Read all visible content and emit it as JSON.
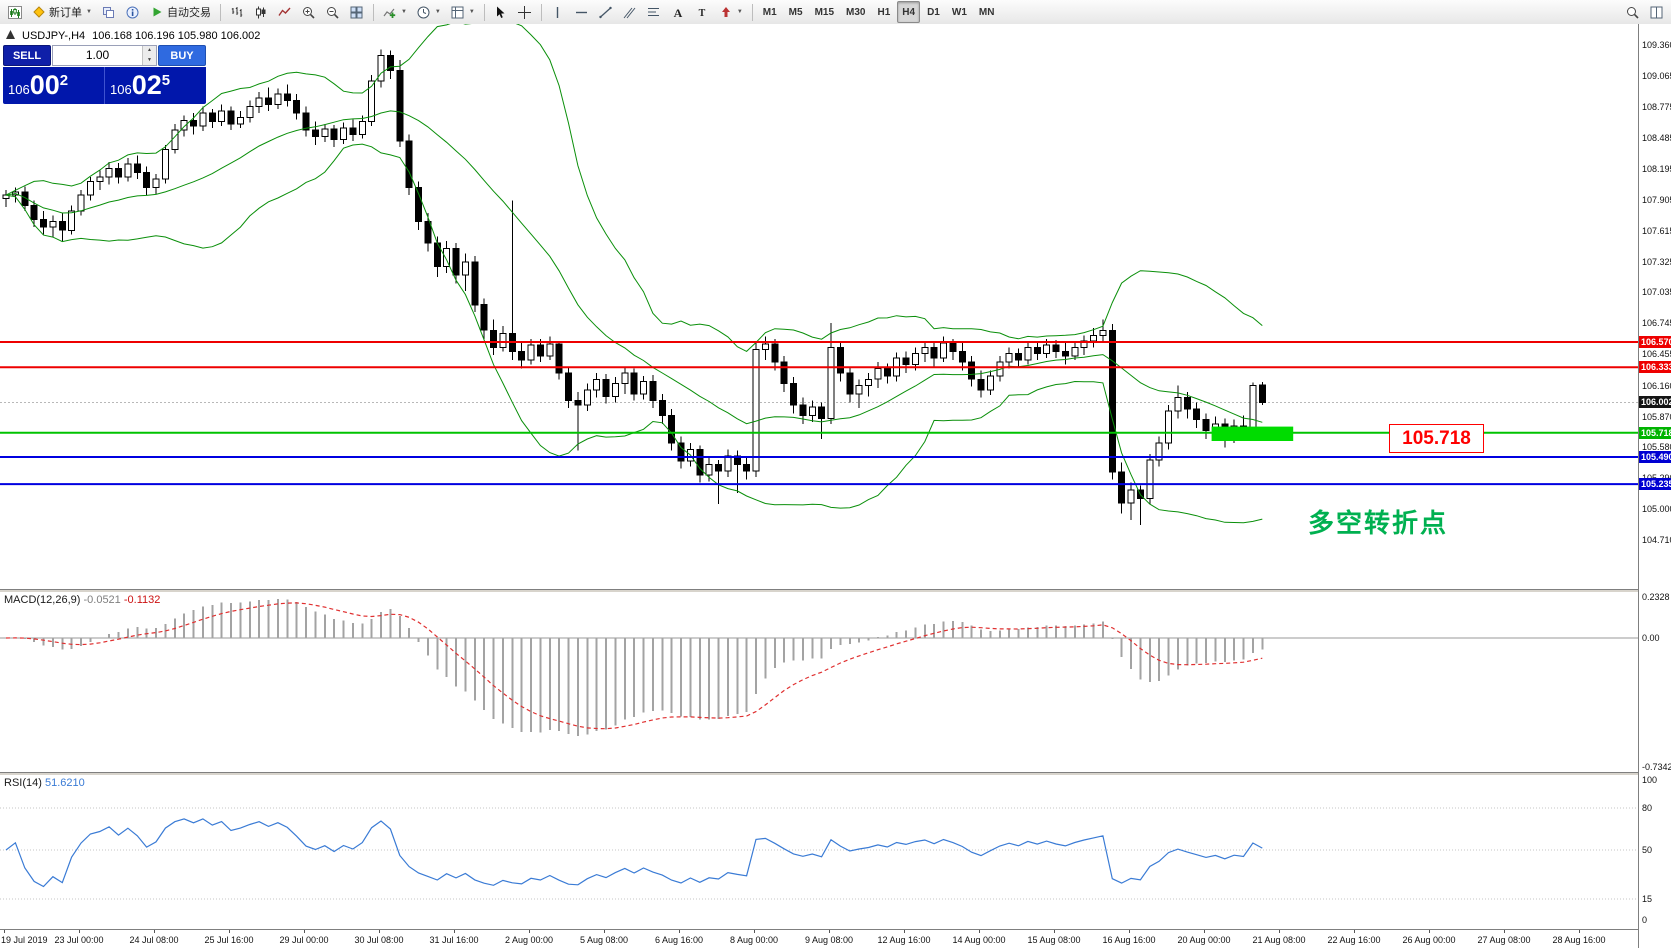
{
  "toolbar": {
    "groups": [
      {
        "items": [
          {
            "name": "new-chart-button",
            "icon": "chart-icon"
          },
          {
            "name": "new-order-button",
            "icon": "diamond-icon",
            "label": "新订单",
            "caret": true
          },
          {
            "name": "profiles-button",
            "icon": "layers-icon"
          },
          {
            "name": "data-window-button",
            "icon": "info-icon"
          },
          {
            "name": "autotrading-button",
            "icon": "play-icon",
            "label": "自动交易"
          }
        ]
      },
      {
        "items": [
          {
            "name": "bar-chart-button",
            "icon": "bars-icon"
          },
          {
            "name": "candlestick-button",
            "icon": "candles-icon"
          },
          {
            "name": "line-chart-button",
            "icon": "line-icon"
          },
          {
            "name": "zoom-in-button",
            "icon": "zoom-in-icon"
          },
          {
            "name": "zoom-out-button",
            "icon": "zoom-out-icon"
          },
          {
            "name": "tile-windows-button",
            "icon": "tile-icon"
          }
        ]
      },
      {
        "items": [
          {
            "name": "indicators-button",
            "icon": "indicator-icon",
            "caret": true
          },
          {
            "name": "periods-button",
            "icon": "clock-icon",
            "caret": true
          },
          {
            "name": "templates-button",
            "icon": "template-icon",
            "caret": true
          }
        ]
      },
      {
        "items": [
          {
            "name": "cursor-button",
            "icon": "cursor-icon"
          },
          {
            "name": "crosshair-button",
            "icon": "crosshair-icon"
          }
        ]
      },
      {
        "items": [
          {
            "name": "vertical-line-button",
            "icon": "vline-icon"
          },
          {
            "name": "horizontal-line-button",
            "icon": "hline-icon"
          },
          {
            "name": "trendline-button",
            "icon": "trendline-icon"
          },
          {
            "name": "channel-button",
            "icon": "channel-icon"
          },
          {
            "name": "fibonacci-button",
            "icon": "fibo-icon"
          },
          {
            "name": "text-button",
            "icon": "text-icon"
          },
          {
            "name": "label-button",
            "icon": "label-icon"
          },
          {
            "name": "arrows-button",
            "icon": "arrow-icon",
            "caret": true
          }
        ]
      },
      {
        "items": [
          {
            "name": "timeframe-m1",
            "label": "M1",
            "tf": true
          },
          {
            "name": "timeframe-m5",
            "label": "M5",
            "tf": true
          },
          {
            "name": "timeframe-m15",
            "label": "M15",
            "tf": true
          },
          {
            "name": "timeframe-m30",
            "label": "M30",
            "tf": true
          },
          {
            "name": "timeframe-h1",
            "label": "H1",
            "tf": true
          },
          {
            "name": "timeframe-h4",
            "label": "H4",
            "tf": true,
            "active": true
          },
          {
            "name": "timeframe-d1",
            "label": "D1",
            "tf": true
          },
          {
            "name": "timeframe-w1",
            "label": "W1",
            "tf": true
          },
          {
            "name": "timeframe-mn",
            "label": "MN",
            "tf": true
          }
        ]
      },
      {
        "align": "right",
        "items": [
          {
            "name": "search-button",
            "icon": "search-icon"
          },
          {
            "name": "arrange-button",
            "icon": "layout-icon"
          }
        ]
      }
    ]
  },
  "symbol_bar": {
    "title": "USDJPY-,H4",
    "ohlc": "106.168 106.196 105.980 106.002"
  },
  "trade_widget": {
    "sell_label": "SELL",
    "buy_label": "BUY",
    "volume": "1.00",
    "bid": {
      "prefix": "106",
      "big": "00",
      "sup": "2"
    },
    "ask": {
      "prefix": "106",
      "big": "02",
      "sup": "5"
    }
  },
  "chart_data": {
    "type": "candlestick",
    "symbol": "USDJPY-",
    "timeframe": "H4",
    "bid_price": 106.002,
    "candles": [
      [
        107.92,
        108.0,
        107.84,
        107.95
      ],
      [
        107.95,
        108.02,
        107.88,
        107.98
      ],
      [
        107.98,
        108.03,
        107.8,
        107.85
      ],
      [
        107.85,
        107.9,
        107.65,
        107.72
      ],
      [
        107.72,
        107.8,
        107.58,
        107.65
      ],
      [
        107.65,
        107.76,
        107.55,
        107.7
      ],
      [
        107.7,
        107.78,
        107.52,
        107.62
      ],
      [
        107.62,
        107.85,
        107.58,
        107.8
      ],
      [
        107.8,
        108.0,
        107.76,
        107.95
      ],
      [
        107.95,
        108.12,
        107.9,
        108.08
      ],
      [
        108.08,
        108.18,
        108.0,
        108.12
      ],
      [
        108.12,
        108.26,
        108.05,
        108.2
      ],
      [
        108.2,
        108.25,
        108.06,
        108.12
      ],
      [
        108.12,
        108.3,
        108.08,
        108.24
      ],
      [
        108.24,
        108.32,
        108.1,
        108.16
      ],
      [
        108.16,
        108.22,
        107.95,
        108.02
      ],
      [
        108.02,
        108.15,
        107.96,
        108.1
      ],
      [
        108.1,
        108.42,
        108.06,
        108.38
      ],
      [
        108.38,
        108.62,
        108.34,
        108.56
      ],
      [
        108.56,
        108.7,
        108.5,
        108.65
      ],
      [
        108.65,
        108.72,
        108.52,
        108.6
      ],
      [
        108.6,
        108.78,
        108.55,
        108.72
      ],
      [
        108.72,
        108.76,
        108.58,
        108.64
      ],
      [
        108.64,
        108.8,
        108.6,
        108.74
      ],
      [
        108.74,
        108.78,
        108.56,
        108.62
      ],
      [
        108.62,
        108.74,
        108.58,
        108.68
      ],
      [
        108.68,
        108.84,
        108.63,
        108.78
      ],
      [
        108.78,
        108.92,
        108.72,
        108.86
      ],
      [
        108.86,
        108.96,
        108.74,
        108.8
      ],
      [
        108.8,
        108.95,
        108.76,
        108.9
      ],
      [
        108.9,
        108.99,
        108.78,
        108.84
      ],
      [
        108.84,
        108.9,
        108.66,
        108.72
      ],
      [
        108.72,
        108.78,
        108.5,
        108.56
      ],
      [
        108.56,
        108.64,
        108.42,
        108.5
      ],
      [
        108.5,
        108.62,
        108.45,
        108.57
      ],
      [
        108.57,
        108.61,
        108.4,
        108.47
      ],
      [
        108.47,
        108.63,
        108.43,
        108.58
      ],
      [
        108.58,
        108.66,
        108.46,
        108.52
      ],
      [
        108.52,
        108.7,
        108.48,
        108.64
      ],
      [
        108.64,
        109.08,
        108.6,
        109.02
      ],
      [
        109.02,
        109.32,
        108.96,
        109.26
      ],
      [
        109.26,
        109.31,
        109.04,
        109.12
      ],
      [
        109.12,
        109.22,
        108.4,
        108.46
      ],
      [
        108.46,
        108.52,
        107.95,
        108.02
      ],
      [
        108.02,
        108.08,
        107.62,
        107.7
      ],
      [
        107.7,
        107.78,
        107.42,
        107.5
      ],
      [
        107.5,
        107.56,
        107.18,
        107.28
      ],
      [
        107.28,
        107.52,
        107.22,
        107.45
      ],
      [
        107.45,
        107.5,
        107.12,
        107.2
      ],
      [
        107.2,
        107.4,
        107.05,
        107.32
      ],
      [
        107.32,
        107.38,
        106.85,
        106.92
      ],
      [
        106.92,
        106.98,
        106.6,
        106.68
      ],
      [
        106.68,
        106.78,
        106.45,
        106.52
      ],
      [
        106.52,
        106.72,
        106.48,
        106.65
      ],
      [
        106.65,
        107.9,
        106.4,
        106.48
      ],
      [
        106.48,
        106.56,
        106.32,
        106.4
      ],
      [
        106.4,
        106.6,
        106.36,
        106.54
      ],
      [
        106.54,
        106.6,
        106.38,
        106.44
      ],
      [
        106.44,
        106.62,
        106.4,
        106.55
      ],
      [
        106.55,
        106.58,
        106.22,
        106.28
      ],
      [
        106.28,
        106.34,
        105.95,
        106.02
      ],
      [
        106.02,
        106.1,
        105.55,
        105.98
      ],
      [
        105.98,
        106.18,
        105.92,
        106.12
      ],
      [
        106.12,
        106.28,
        106.05,
        106.22
      ],
      [
        106.22,
        106.27,
        105.99,
        106.06
      ],
      [
        106.06,
        106.24,
        106.0,
        106.18
      ],
      [
        106.18,
        106.33,
        106.08,
        106.28
      ],
      [
        106.28,
        106.32,
        106.02,
        106.08
      ],
      [
        106.08,
        106.25,
        106.03,
        106.2
      ],
      [
        106.2,
        106.26,
        105.95,
        106.02
      ],
      [
        106.02,
        106.08,
        105.8,
        105.88
      ],
      [
        105.88,
        105.94,
        105.55,
        105.62
      ],
      [
        105.62,
        105.68,
        105.38,
        105.45
      ],
      [
        105.45,
        105.62,
        105.4,
        105.56
      ],
      [
        105.56,
        105.6,
        105.25,
        105.32
      ],
      [
        105.32,
        105.48,
        105.26,
        105.42
      ],
      [
        105.42,
        105.46,
        105.05,
        105.36
      ],
      [
        105.36,
        105.56,
        105.3,
        105.5
      ],
      [
        105.5,
        105.55,
        105.15,
        105.42
      ],
      [
        105.42,
        105.48,
        105.28,
        105.36
      ],
      [
        105.36,
        106.56,
        105.3,
        106.5
      ],
      [
        106.5,
        106.62,
        106.4,
        106.55
      ],
      [
        106.55,
        106.6,
        106.3,
        106.38
      ],
      [
        106.38,
        106.44,
        106.1,
        106.18
      ],
      [
        106.18,
        106.24,
        105.9,
        105.98
      ],
      [
        105.98,
        106.05,
        105.8,
        105.88
      ],
      [
        105.88,
        106.02,
        105.82,
        105.96
      ],
      [
        105.96,
        106.0,
        105.66,
        105.85
      ],
      [
        105.85,
        106.75,
        105.8,
        106.52
      ],
      [
        106.52,
        106.58,
        106.2,
        106.28
      ],
      [
        106.28,
        106.34,
        106.0,
        106.08
      ],
      [
        106.08,
        106.22,
        105.95,
        106.16
      ],
      [
        106.16,
        106.28,
        106.06,
        106.22
      ],
      [
        106.22,
        106.38,
        106.14,
        106.32
      ],
      [
        106.32,
        106.37,
        106.18,
        106.25
      ],
      [
        106.25,
        106.47,
        106.2,
        106.42
      ],
      [
        106.42,
        106.48,
        106.28,
        106.36
      ],
      [
        106.36,
        106.52,
        106.3,
        106.46
      ],
      [
        106.46,
        106.57,
        106.38,
        106.52
      ],
      [
        106.52,
        106.56,
        106.34,
        106.42
      ],
      [
        106.42,
        106.62,
        106.38,
        106.56
      ],
      [
        106.56,
        106.6,
        106.4,
        106.48
      ],
      [
        106.48,
        106.58,
        106.3,
        106.38
      ],
      [
        106.38,
        106.44,
        106.15,
        106.22
      ],
      [
        106.22,
        106.3,
        106.05,
        106.12
      ],
      [
        106.12,
        106.3,
        106.07,
        106.25
      ],
      [
        106.25,
        106.44,
        106.2,
        106.38
      ],
      [
        106.38,
        106.52,
        106.32,
        106.46
      ],
      [
        106.46,
        106.51,
        106.34,
        106.4
      ],
      [
        106.4,
        106.58,
        106.36,
        106.52
      ],
      [
        106.52,
        106.57,
        106.4,
        106.46
      ],
      [
        106.46,
        106.6,
        106.42,
        106.54
      ],
      [
        106.54,
        106.59,
        106.42,
        106.48
      ],
      [
        106.48,
        106.56,
        106.36,
        106.44
      ],
      [
        106.44,
        106.57,
        106.4,
        106.52
      ],
      [
        106.52,
        106.63,
        106.45,
        106.58
      ],
      [
        106.58,
        106.7,
        106.52,
        106.63
      ],
      [
        106.63,
        106.78,
        106.56,
        106.68
      ],
      [
        106.68,
        106.74,
        105.28,
        105.35
      ],
      [
        105.35,
        105.44,
        104.96,
        105.06
      ],
      [
        105.06,
        105.25,
        104.9,
        105.18
      ],
      [
        105.18,
        105.22,
        104.85,
        105.1
      ],
      [
        105.1,
        105.52,
        105.05,
        105.46
      ],
      [
        105.46,
        105.68,
        105.4,
        105.62
      ],
      [
        105.62,
        105.98,
        105.56,
        105.92
      ],
      [
        105.92,
        106.16,
        105.85,
        106.05
      ],
      [
        106.05,
        106.1,
        105.85,
        105.94
      ],
      [
        105.94,
        106.0,
        105.76,
        105.84
      ],
      [
        105.84,
        105.9,
        105.66,
        105.74
      ],
      [
        105.74,
        105.87,
        105.68,
        105.8
      ],
      [
        105.8,
        105.85,
        105.58,
        105.68
      ],
      [
        105.68,
        105.84,
        105.62,
        105.78
      ],
      [
        105.78,
        105.88,
        105.66,
        105.74
      ],
      [
        105.74,
        106.19,
        105.7,
        106.16
      ],
      [
        106.168,
        106.196,
        105.98,
        106.002
      ]
    ],
    "bollinger": {
      "period": 20,
      "deviation": 2,
      "color": "#0a8f0a"
    },
    "h_lines": [
      {
        "price": 106.57,
        "color": "#ee0000",
        "width": 2
      },
      {
        "price": 106.333,
        "color": "#ee0000",
        "width": 2
      },
      {
        "price": 105.718,
        "color": "#00c300",
        "width": 2
      },
      {
        "price": 105.49,
        "color": "#0000e0",
        "width": 2
      },
      {
        "price": 105.235,
        "color": "#0000e0",
        "width": 2
      }
    ],
    "green_box": {
      "index_start": 128.6,
      "index_end": 137.3,
      "price_top": 105.775,
      "price_bottom": 105.64,
      "color": "#00dc00"
    },
    "macd": {
      "params": [
        12,
        26,
        9
      ],
      "histogram_color": "#a3a3a3",
      "signal_color": "#e03030"
    },
    "rsi": {
      "period": 14,
      "color": "#3a7bd5",
      "levels": [
        80,
        50,
        15
      ]
    }
  },
  "macd_panel": {
    "label": "MACD(12,26,9)",
    "value_main": "-0.0521",
    "value_signal": "-0.1132",
    "scale": [
      {
        "text": "0.2328",
        "value": 0.2328
      },
      {
        "text": "0.00",
        "value": 0
      },
      {
        "text": "-0.7342",
        "value": -0.7342
      }
    ]
  },
  "rsi_panel": {
    "label": "RSI(14)",
    "value": "51.6210",
    "scale": [
      {
        "text": "100",
        "value": 100
      },
      {
        "text": "80",
        "value": 80
      },
      {
        "text": "50",
        "value": 50
      },
      {
        "text": "15",
        "value": 15
      },
      {
        "text": "0",
        "value": 0
      }
    ]
  },
  "price_scale": {
    "labels": [
      "109.360",
      "109.065",
      "108.775",
      "108.485",
      "108.195",
      "107.905",
      "107.615",
      "107.325",
      "107.035",
      "106.745",
      "106.455",
      "106.160",
      "105.870",
      "105.580",
      "105.290",
      "105.000",
      "104.710"
    ],
    "tags": [
      {
        "text": "106.570",
        "price": 106.57,
        "bg": "#ee0000"
      },
      {
        "text": "106.333",
        "price": 106.333,
        "bg": "#ee0000"
      },
      {
        "text": "106.002",
        "price": 106.002,
        "bg": "#141414"
      },
      {
        "text": "105.718",
        "price": 105.718,
        "bg": "#00b400"
      },
      {
        "text": "105.490",
        "price": 105.49,
        "bg": "#0000d2"
      },
      {
        "text": "105.235",
        "price": 105.235,
        "bg": "#0000d2"
      }
    ]
  },
  "time_axis": {
    "labels": [
      "19 Jul 2019",
      "23 Jul 00:00",
      "24 Jul 08:00",
      "25 Jul 16:00",
      "29 Jul 00:00",
      "30 Jul 08:00",
      "31 Jul 16:00",
      "2 Aug 00:00",
      "5 Aug 08:00",
      "6 Aug 16:00",
      "8 Aug 00:00",
      "9 Aug 08:00",
      "12 Aug 16:00",
      "14 Aug 00:00",
      "15 Aug 08:00",
      "16 Aug 16:00",
      "20 Aug 00:00",
      "21 Aug 08:00",
      "22 Aug 16:00",
      "26 Aug 00:00",
      "27 Aug 08:00",
      "28 Aug 16:00"
    ]
  },
  "annotations": {
    "price_callout": {
      "text": "105.718",
      "color": "#ff0000"
    },
    "note": {
      "text": "多空转折点",
      "color": "#00b050"
    }
  }
}
